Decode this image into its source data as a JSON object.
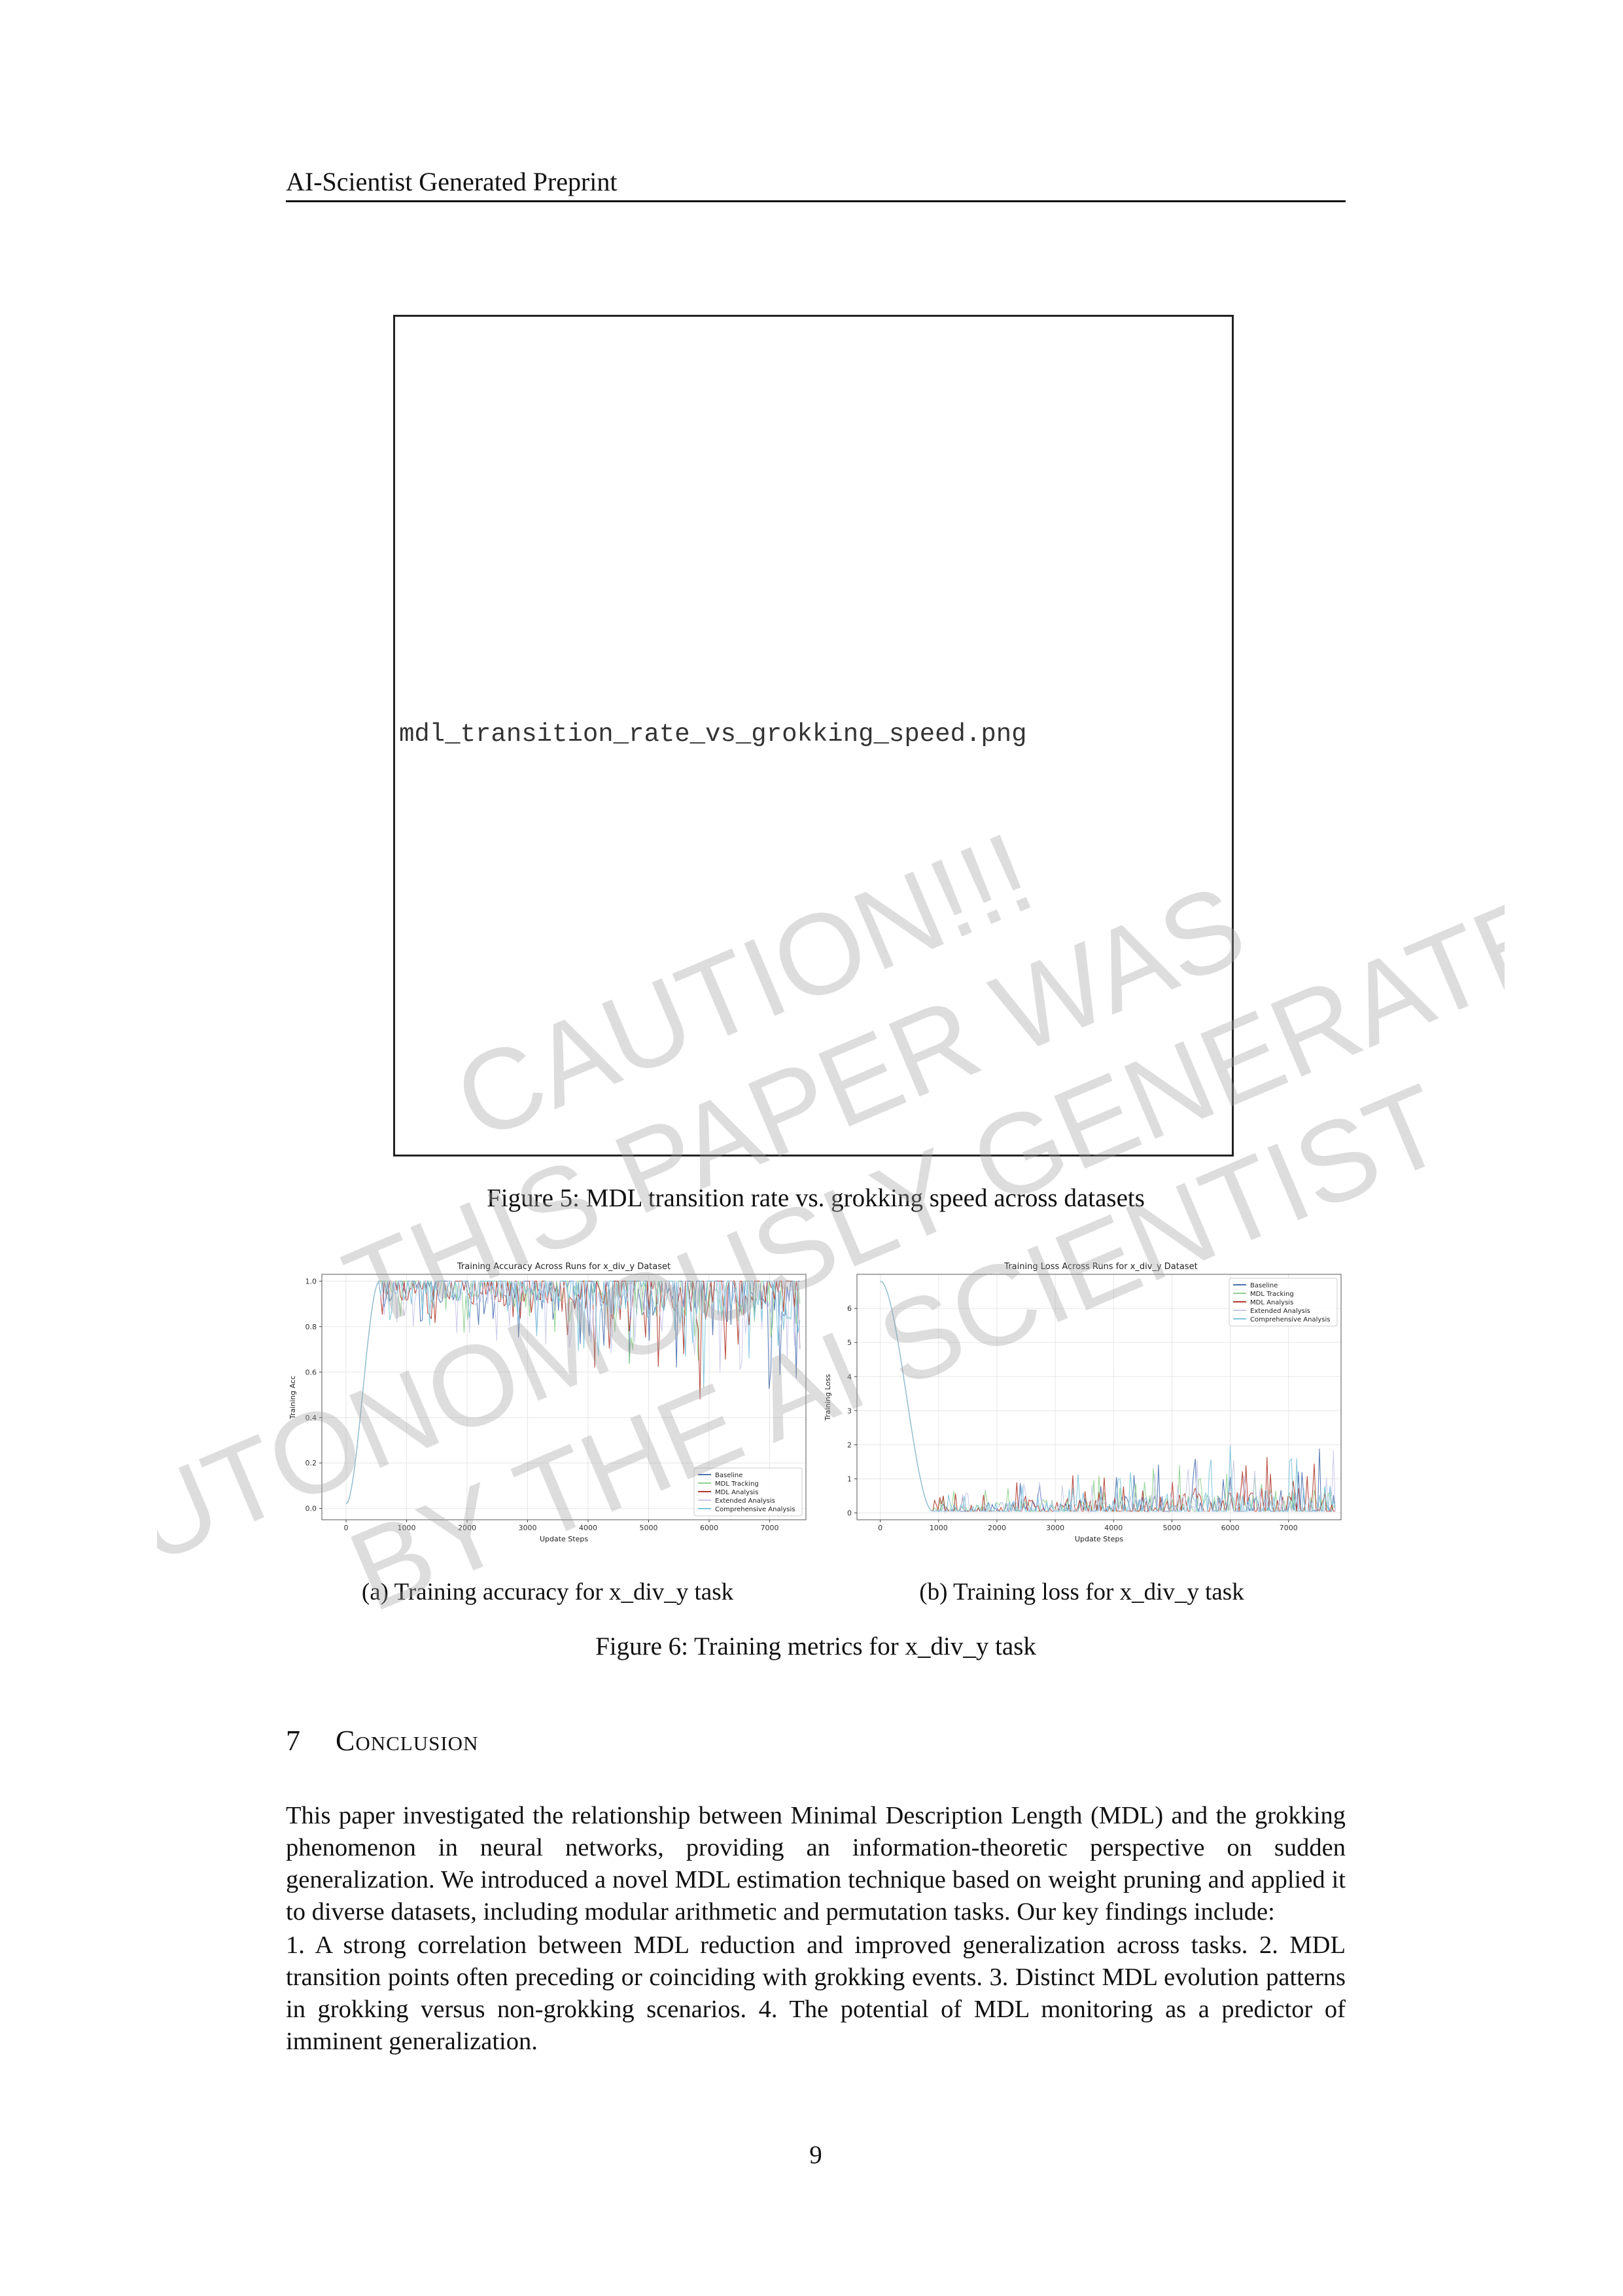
{
  "header": {
    "running_title": "AI-Scientist Generated Preprint"
  },
  "figure5": {
    "placeholder_filename": "mdl_transition_rate_vs_grokking_speed.png",
    "caption": "Figure 5: MDL transition rate vs. grokking speed across datasets"
  },
  "figure6": {
    "caption": "Figure 6: Training metrics for x_div_y task",
    "sub_a_caption": "(a) Training accuracy for x_div_y task",
    "sub_b_caption": "(b) Training loss for x_div_y task"
  },
  "chart_data": [
    {
      "type": "line",
      "title": "Training Accuracy Across Runs for x_div_y Dataset",
      "xlabel": "Update Steps",
      "ylabel": "Training Acc",
      "xlim": [
        -400,
        7600
      ],
      "ylim": [
        -0.05,
        1.03
      ],
      "xticks": [
        0,
        1000,
        2000,
        3000,
        4000,
        5000,
        6000,
        7000
      ],
      "yticks": [
        0.0,
        0.2,
        0.4,
        0.6,
        0.8,
        1.0
      ],
      "xtick_labels": [
        "0",
        "1000",
        "2000",
        "3000",
        "4000",
        "5000",
        "6000",
        "7000"
      ],
      "ytick_labels": [
        "0.0",
        "0.2",
        "0.4",
        "0.6",
        "0.8",
        "1.0"
      ],
      "grid": true,
      "legend_position": "lower-right",
      "series": [
        {
          "name": "Baseline",
          "color": "#4c72b0",
          "seed": 1
        },
        {
          "name": "MDL Tracking",
          "color": "#8fd18f",
          "seed": 2
        },
        {
          "name": "MDL Analysis",
          "color": "#b23a2e",
          "seed": 3
        },
        {
          "name": "Extended Analysis",
          "color": "#c9c9ea",
          "seed": 4
        },
        {
          "name": "Comprehensive Analysis",
          "color": "#7cc4dc",
          "seed": 5
        }
      ],
      "curve": {
        "rise_start_step": 0,
        "rise_end_step": 550,
        "start_value": 0.02,
        "plateau_value": 1.0,
        "end_step": 7500,
        "dip_depth_min": 0.02,
        "dip_depth_max_early": 0.1,
        "dip_depth_max_late": 0.3
      },
      "annotated_dips": [
        {
          "step": 4100,
          "value": 0.62
        },
        {
          "step": 5850,
          "value": 0.48
        }
      ]
    },
    {
      "type": "line",
      "title": "Training Loss Across Runs for x_div_y Dataset",
      "xlabel": "Update Steps",
      "ylabel": "Training Loss",
      "xlim": [
        -400,
        7900
      ],
      "ylim": [
        -0.2,
        7.0
      ],
      "xticks": [
        0,
        1000,
        2000,
        3000,
        4000,
        5000,
        6000,
        7000
      ],
      "yticks": [
        0,
        1,
        2,
        3,
        4,
        5,
        6
      ],
      "xtick_labels": [
        "0",
        "1000",
        "2000",
        "3000",
        "4000",
        "5000",
        "6000",
        "7000"
      ],
      "ytick_labels": [
        "0",
        "1",
        "2",
        "3",
        "4",
        "5",
        "6"
      ],
      "grid": true,
      "legend_position": "upper-right",
      "series": [
        {
          "name": "Baseline",
          "color": "#4c72b0",
          "seed": 11
        },
        {
          "name": "MDL Tracking",
          "color": "#8fd18f",
          "seed": 12
        },
        {
          "name": "MDL Analysis",
          "color": "#b23a2e",
          "seed": 13
        },
        {
          "name": "Extended Analysis",
          "color": "#c9c9ea",
          "seed": 14
        },
        {
          "name": "Comprehensive Analysis",
          "color": "#7cc4dc",
          "seed": 15
        }
      ],
      "curve": {
        "start_value": 6.8,
        "decay_end_step": 900,
        "floor_value": 0.05,
        "end_step": 7800,
        "spike_max_early": 0.35,
        "spike_max_late": 1.4
      },
      "annotated_spikes": [
        {
          "step": 4100,
          "value": 1.0
        },
        {
          "step": 6000,
          "value": 2.0
        },
        {
          "step": 7450,
          "value": 1.45
        }
      ]
    }
  ],
  "section": {
    "number": "7",
    "title": "Conclusion"
  },
  "body": {
    "paragraph_1": "This paper investigated the relationship between Minimal Description Length (MDL) and the grokking phenomenon in neural networks, providing an information-theoretic perspective on sudden generalization. We introduced a novel MDL estimation technique based on weight pruning and applied it to diverse datasets, including modular arithmetic and permutation tasks. Our key findings include:",
    "paragraph_2": "1. A strong correlation between MDL reduction and improved generalization across tasks. 2. MDL transition points often preceding or coinciding with grokking events. 3. Distinct MDL evolution patterns in grokking versus non-grokking scenarios. 4. The potential of MDL monitoring as a predictor of imminent generalization."
  },
  "page_number": "9",
  "watermark": {
    "lines": [
      "CAUTION!!!",
      "THIS PAPER WAS",
      "AUTONOMOUSLY GENERATED",
      "BY THE AI SCIENTIST"
    ]
  }
}
